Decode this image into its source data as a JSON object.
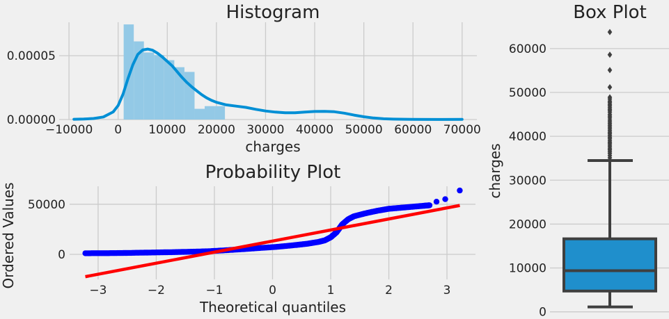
{
  "colors": {
    "background": "#f0f0f0",
    "grid": "#cbcbcb",
    "hist_bar": "#93c9e6",
    "kde": "#008fd5",
    "qq_points": "#0000ff",
    "qq_line": "#ff0000",
    "box_fill": "#1f8fcc",
    "box_edge": "#3f3f3f"
  },
  "chart_data": [
    {
      "type": "bar",
      "title": "Histogram",
      "xlabel": "charges",
      "ylabel": "",
      "xlim": [
        -12000,
        73000
      ],
      "ylim": [
        0,
        7.62e-05
      ],
      "xticks": [
        -10000,
        0,
        10000,
        20000,
        30000,
        40000,
        50000,
        60000,
        70000
      ],
      "xtick_labels": [
        "−10000",
        "0",
        "10000",
        "20000",
        "30000",
        "40000",
        "50000",
        "60000",
        "70000"
      ],
      "yticks": [
        0,
        5e-05
      ],
      "ytick_labels": [
        "0.00000",
        "0.00005"
      ],
      "grid": true,
      "bins": [
        {
          "x0": 1122,
          "x1": 3183,
          "density": 7.45e-05
        },
        {
          "x0": 3183,
          "x1": 5244,
          "density": 6.12e-05
        },
        {
          "x0": 5244,
          "x1": 7305,
          "density": 5.25e-05
        },
        {
          "x0": 7305,
          "x1": 9366,
          "density": 5.05e-05
        },
        {
          "x0": 9366,
          "x1": 11427,
          "density": 4.65e-05
        },
        {
          "x0": 11427,
          "x1": 13488,
          "density": 4.1e-05
        },
        {
          "x0": 13488,
          "x1": 15549,
          "density": 3.73e-05
        },
        {
          "x0": 15549,
          "x1": 17610,
          "density": 8.4e-06
        },
        {
          "x0": 17610,
          "x1": 19671,
          "density": 1.05e-05
        },
        {
          "x0": 19671,
          "x1": 21732,
          "density": 1.05e-05
        }
      ],
      "kde": {
        "x": [
          -9000,
          -7000,
          -5000,
          -3000,
          -1000,
          0,
          1000,
          2000,
          3000,
          4000,
          5000,
          6000,
          7000,
          8000,
          9000,
          10000,
          11000,
          12000,
          13000,
          14000,
          15000,
          16000,
          17000,
          18000,
          19000,
          20000,
          22000,
          24000,
          26000,
          28000,
          30000,
          32000,
          34000,
          36000,
          38000,
          40000,
          42000,
          44000,
          46000,
          48000,
          50000,
          52000,
          54000,
          56000,
          60000,
          65000,
          70000
        ],
        "y": [
          2e-07,
          4e-07,
          8e-07,
          2e-06,
          6e-06,
          1.1e-05,
          2e-05,
          3.2e-05,
          4.3e-05,
          5.1e-05,
          5.45e-05,
          5.52e-05,
          5.43e-05,
          5.2e-05,
          4.9e-05,
          4.55e-05,
          4.2e-05,
          3.75e-05,
          3.3e-05,
          2.9e-05,
          2.55e-05,
          2.25e-05,
          1.95e-05,
          1.7e-05,
          1.5e-05,
          1.35e-05,
          1.15e-05,
          1.05e-05,
          9.5e-06,
          8e-06,
          6.7e-06,
          5.8e-06,
          5.3e-06,
          5.3e-06,
          5.8e-06,
          6.3e-06,
          6.4e-06,
          6.1e-06,
          5e-06,
          3.5e-06,
          2.2e-06,
          1.2e-06,
          6e-07,
          3e-07,
          1e-07,
          5e-08,
          1e-07
        ]
      }
    },
    {
      "type": "scatter",
      "title": "Probability Plot",
      "xlabel": "Theoretical quantiles",
      "ylabel": "Ordered Values",
      "xlim": [
        -3.49,
        3.49
      ],
      "ylim": [
        -25000,
        68000
      ],
      "xticks": [
        -3,
        -2,
        -1,
        0,
        1,
        2,
        3
      ],
      "xtick_labels": [
        "−3",
        "−2",
        "−1",
        "0",
        "1",
        "2",
        "3"
      ],
      "yticks": [
        0,
        50000
      ],
      "ytick_labels": [
        "0",
        "50000"
      ],
      "grid": true,
      "fit_line": {
        "slope": 11045,
        "intercept": 13270,
        "x": [
          -3.22,
          3.22
        ]
      },
      "quantile_curve": {
        "x": [
          -3.22,
          -2.9,
          -2.6,
          -2.3,
          -2.0,
          -1.7,
          -1.4,
          -1.1,
          -0.8,
          -0.5,
          -0.2,
          0.1,
          0.4,
          0.6,
          0.8,
          0.9,
          1.0,
          1.05,
          1.1,
          1.15,
          1.2,
          1.3,
          1.4,
          1.6,
          1.8,
          2.0,
          2.2,
          2.4,
          2.6,
          2.7
        ],
        "y": [
          1120,
          1150,
          1300,
          1600,
          1900,
          2200,
          2600,
          3100,
          4100,
          5200,
          6400,
          7600,
          9300,
          10600,
          12500,
          14000,
          17000,
          19500,
          22000,
          26000,
          30000,
          35000,
          38000,
          41000,
          43500,
          45500,
          46500,
          47500,
          48500,
          49000
        ]
      },
      "outliers": [
        {
          "x": 2.82,
          "y": 52600
        },
        {
          "x": 2.97,
          "y": 55100
        },
        {
          "x": 3.22,
          "y": 63770
        }
      ]
    },
    {
      "type": "box",
      "title": "Box Plot",
      "xlabel": "",
      "ylabel": "charges",
      "ylim": [
        -1000,
        66000
      ],
      "yticks": [
        0,
        10000,
        20000,
        30000,
        40000,
        50000,
        60000
      ],
      "ytick_labels": [
        "0",
        "10000",
        "20000",
        "30000",
        "40000",
        "50000",
        "60000"
      ],
      "grid": true,
      "min": 1122,
      "q1": 4740,
      "median": 9382,
      "q3": 16640,
      "whisker_high": 34472,
      "outliers": [
        34500,
        35100,
        35600,
        36100,
        36500,
        36900,
        37200,
        37600,
        38000,
        38400,
        38700,
        39100,
        39500,
        39800,
        40200,
        40600,
        40900,
        41300,
        41700,
        42100,
        42500,
        42900,
        43300,
        43700,
        44200,
        44600,
        45000,
        45500,
        45900,
        46200,
        46600,
        47000,
        47300,
        47700,
        48000,
        48500,
        48900,
        51200,
        55100,
        58600,
        63770
      ]
    }
  ]
}
